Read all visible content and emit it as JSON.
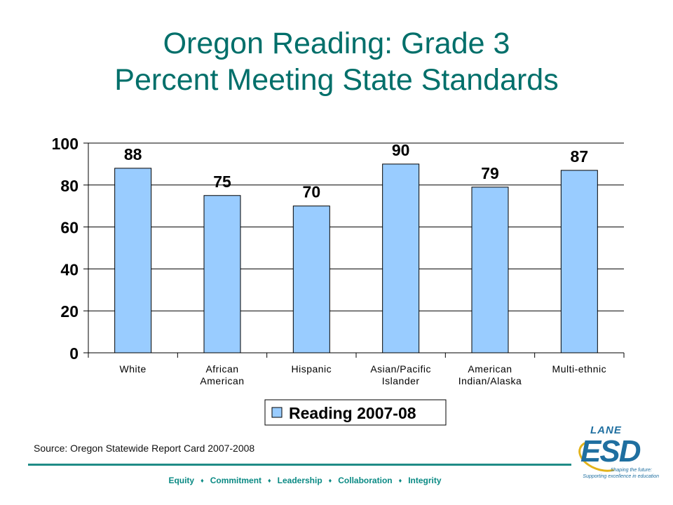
{
  "title": {
    "line1": "Oregon Reading: Grade 3",
    "line2": "Percent Meeting State Standards"
  },
  "colors": {
    "title": "#006f6a",
    "bar_fill": "#99ccff",
    "bar_stroke": "#000000",
    "footer": "#0a8a84",
    "rule": "#1f8c86",
    "logo_blue": "#1f6fa0",
    "logo_gold": "#e3b31a"
  },
  "chart_data": {
    "type": "bar",
    "categories": [
      [
        "White"
      ],
      [
        "African",
        "American"
      ],
      [
        "Hispanic"
      ],
      [
        "Asian/Pacific",
        "Islander"
      ],
      [
        "American",
        "Indian/Alaska"
      ],
      [
        "Multi-ethnic"
      ]
    ],
    "series": [
      {
        "name": "Reading 2007-08",
        "values": [
          88,
          75,
          70,
          90,
          79,
          87
        ]
      }
    ],
    "ylim": [
      0,
      100
    ],
    "yticks": [
      0,
      20,
      40,
      60,
      80,
      100
    ],
    "grid": true,
    "legend": "bottom-center",
    "data_labels": true
  },
  "source": "Source: Oregon Statewide Report Card 2007-2008",
  "footer": {
    "items": [
      "Equity",
      "Commitment",
      "Leadership",
      "Collaboration",
      "Integrity"
    ],
    "separator": "♦"
  },
  "logo": {
    "lane": "LANE",
    "esd": "ESD",
    "tagline1": "Shaping the future:",
    "tagline2": "Supporting excellence in education",
    "icon": "lane-esd-logo"
  }
}
